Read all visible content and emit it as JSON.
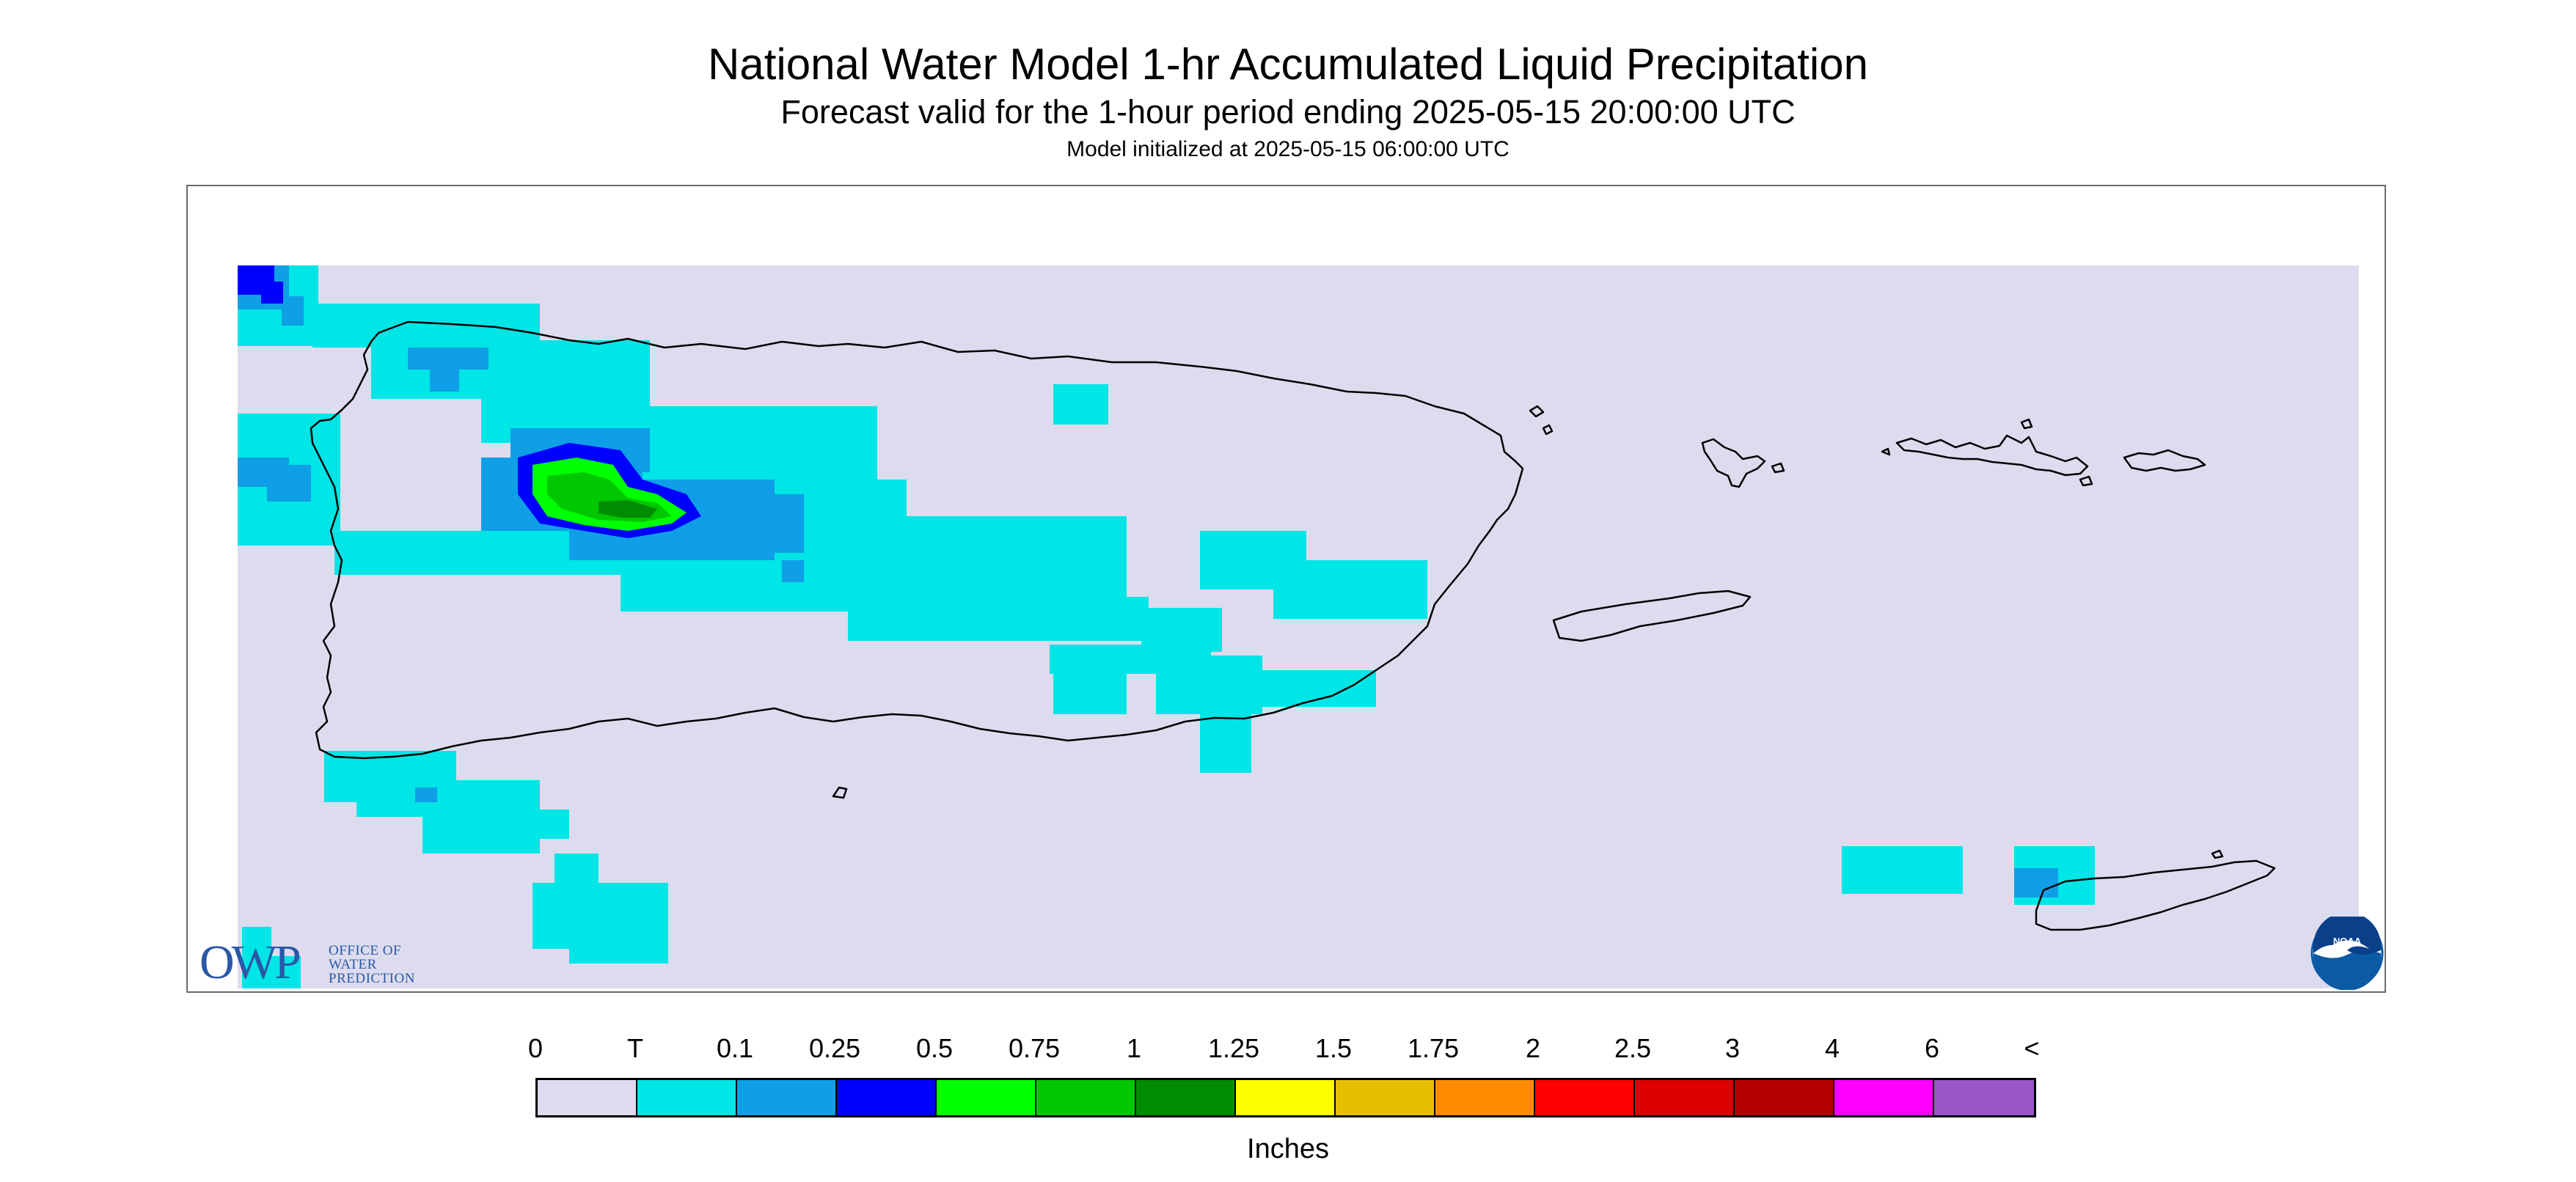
{
  "title": "National Water Model 1-hr Accumulated Liquid Precipitation",
  "subtitle": "Forecast valid for the 1-hour period ending 2025-05-15 20:00:00 UTC",
  "model_init": "Model initialized at 2025-05-15 06:00:00 UTC",
  "map": {
    "region": "Puerto Rico and U.S. Virgin Islands",
    "background_color": "#dcdcee",
    "coastline_color": "#000000",
    "frame_color": "#6a6a6a"
  },
  "logos": {
    "owp_text": "OWP",
    "owp_lines": [
      "OFFICE OF",
      "WATER",
      "PREDICTION"
    ],
    "owp_color": "#2a58a8",
    "noaa_text": "NOAA",
    "noaa_color": "#0a5aa6"
  },
  "legend": {
    "labels": [
      "0",
      "T",
      "0.1",
      "0.25",
      "0.5",
      "0.75",
      "1",
      "1.25",
      "1.5",
      "1.75",
      "2",
      "2.5",
      "3",
      "4",
      "6",
      "<"
    ],
    "colors": [
      "#dcdcee",
      "#00e5e5",
      "#0f9fe6",
      "#0000ff",
      "#00ff00",
      "#00c800",
      "#008c00",
      "#ffff00",
      "#e6c000",
      "#ff8c00",
      "#ff0000",
      "#dc0000",
      "#b40000",
      "#ff00ff",
      "#9a55c8"
    ],
    "units": "Inches"
  }
}
